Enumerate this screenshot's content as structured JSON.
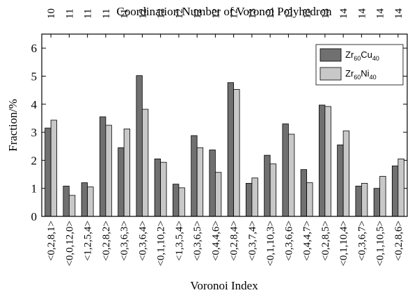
{
  "chart_data": {
    "type": "bar",
    "top_axis_label": "Coordination Number of Voronoi Polyhedron",
    "top_categories": [
      "10",
      "11",
      "11",
      "11",
      "11",
      "12",
      "12",
      "12",
      "12",
      "12",
      "12",
      "13",
      "13",
      "13",
      "13",
      "13",
      "14",
      "14",
      "14",
      "14"
    ],
    "x_label": "Voronoi Index",
    "y_label": "Fraction/%",
    "categories": [
      "<0,2,8,1>",
      "<0,0,12,0>",
      "<1,2,5,4>",
      "<0,2,8,2>",
      "<0,3,6,3>",
      "<0,3,6,4>",
      "<0,1,10,2>",
      "<1,3,5,4>",
      "<0,3,6,5>",
      "<0,4,4,6>",
      "<0,2,8,4>",
      "<0,3,7,4>",
      "<0,1,10,3>",
      "<0,3,6,6>",
      "<0,4,4,7>",
      "<0,2,8,5>",
      "<0,1,10,4>",
      "<0,3,6,7>",
      "<0,1,10,5>",
      "<0,2,8,6>"
    ],
    "series": [
      {
        "name": "Zr60Cu40",
        "color": "#707070",
        "values": [
          3.15,
          1.08,
          1.2,
          3.55,
          2.45,
          5.02,
          2.05,
          1.15,
          2.88,
          2.37,
          4.77,
          1.18,
          2.18,
          3.3,
          1.67,
          3.97,
          2.55,
          1.08,
          1.0,
          1.8
        ]
      },
      {
        "name": "Zr60Ni40",
        "color": "#c8c8c8",
        "values": [
          3.43,
          0.75,
          1.05,
          3.25,
          3.12,
          3.82,
          1.93,
          1.02,
          2.45,
          1.57,
          4.53,
          1.37,
          1.87,
          2.93,
          1.2,
          3.92,
          3.05,
          1.18,
          1.43,
          2.05
        ]
      }
    ],
    "ylim": [
      0,
      6.5
    ],
    "yticks": [
      0,
      1,
      2,
      3,
      4,
      5,
      6
    ],
    "legend": "upper right"
  }
}
